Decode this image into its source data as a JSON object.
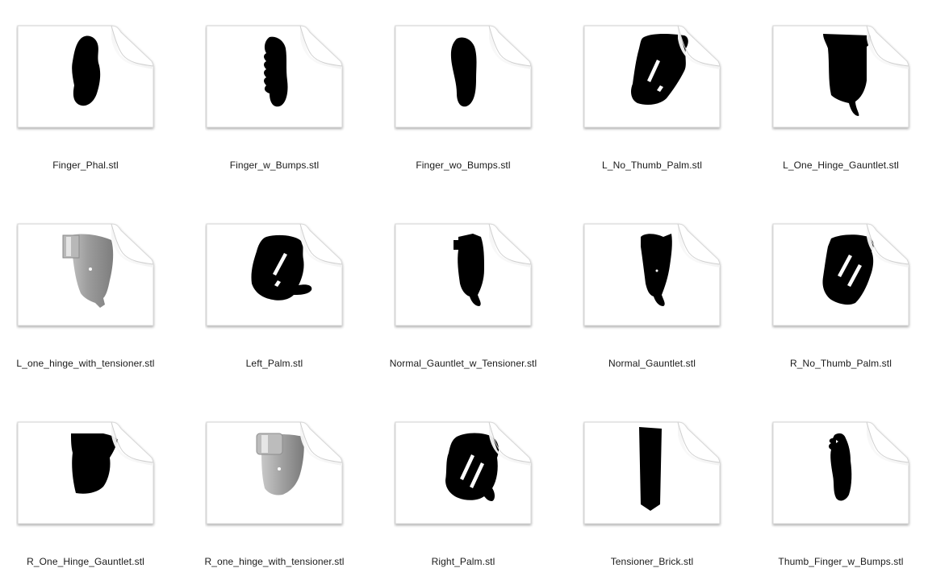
{
  "files": [
    {
      "name": "Finger_Phal.stl",
      "thumb": "finger-phal",
      "style": "silhouette"
    },
    {
      "name": "Finger_w_Bumps.stl",
      "thumb": "finger-bumps",
      "style": "silhouette"
    },
    {
      "name": "Finger_wo_Bumps.stl",
      "thumb": "finger-nobumps",
      "style": "silhouette"
    },
    {
      "name": "L_No_Thumb_Palm.stl",
      "thumb": "palm-nothumb",
      "style": "silhouette"
    },
    {
      "name": "L_One_Hinge_Gauntlet.stl",
      "thumb": "gauntlet-hinge",
      "style": "silhouette"
    },
    {
      "name": "L_one_hinge_with_tensioner.stl",
      "thumb": "gauntlet-tensioner",
      "style": "shaded"
    },
    {
      "name": "Left_Palm.stl",
      "thumb": "left-palm",
      "style": "silhouette"
    },
    {
      "name": "Normal_Gauntlet_w_Tensioner.stl",
      "thumb": "gauntlet-normal-tensioner",
      "style": "silhouette"
    },
    {
      "name": "Normal_Gauntlet.stl",
      "thumb": "gauntlet-normal",
      "style": "silhouette"
    },
    {
      "name": "R_No_Thumb_Palm.stl",
      "thumb": "palm-nothumb-right",
      "style": "silhouette"
    },
    {
      "name": "R_One_Hinge_Gauntlet.stl",
      "thumb": "gauntlet-hinge-right",
      "style": "silhouette"
    },
    {
      "name": "R_one_hinge_with_tensioner.stl",
      "thumb": "gauntlet-tensioner-right",
      "style": "shaded"
    },
    {
      "name": "Right_Palm.stl",
      "thumb": "right-palm",
      "style": "silhouette"
    },
    {
      "name": "Tensioner_Brick.stl",
      "thumb": "tensioner-brick",
      "style": "silhouette"
    },
    {
      "name": "Thumb_Finger_w_Bumps.stl",
      "thumb": "thumb-bumps",
      "style": "silhouette"
    }
  ],
  "colors": {
    "page_bg": "#ffffff",
    "doc_paper": "#ffffff",
    "doc_border": "#d6d6d6",
    "fold": "#ececec",
    "silhouette": "#000000",
    "shaded_model": "#9a9a9a",
    "label_text": "#1a1a1a"
  }
}
